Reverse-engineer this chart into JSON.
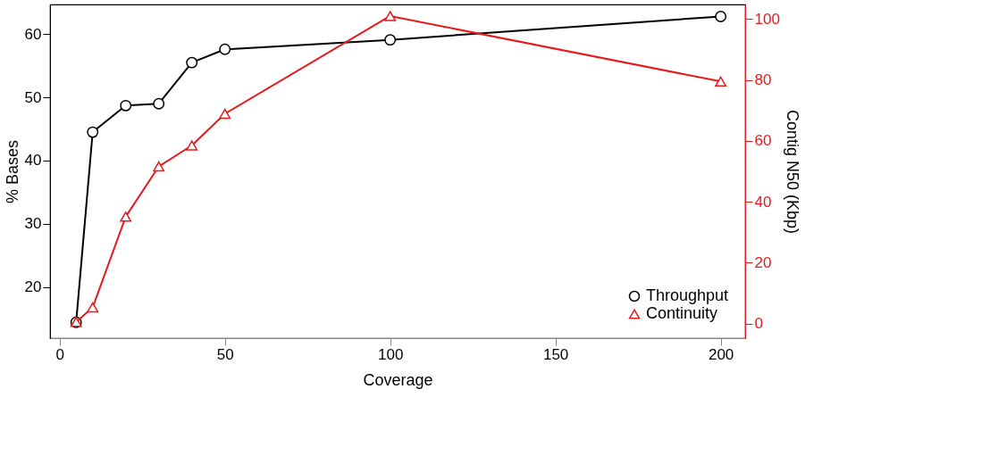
{
  "chart_data": {
    "type": "line",
    "xlabel": "Coverage",
    "ylabel": "% Bases",
    "y2label": "Contig N50 (Kbp)",
    "x": [
      5,
      10,
      20,
      30,
      40,
      50,
      100,
      200
    ],
    "series": [
      {
        "name": "Throughput",
        "color": "#000000",
        "marker": "circle",
        "values": [
          14.4,
          44.5,
          48.7,
          49.0,
          55.5,
          57.6,
          59.1,
          62.8
        ]
      },
      {
        "name": "Continuity",
        "color": "#e41a1c",
        "marker": "triangle",
        "axis": "y2",
        "values": [
          0.5,
          5.3,
          35.1,
          51.6,
          58.5,
          68.9,
          101,
          79.5
        ]
      }
    ],
    "xlim": [
      -2.9,
      207.4
    ],
    "xticks": [
      0,
      50,
      100,
      150,
      200
    ],
    "ylim": [
      11.9,
      64.7
    ],
    "yticks": [
      20,
      30,
      40,
      50,
      60
    ],
    "y2lim": [
      -4.8,
      104.8
    ],
    "y2ticks": [
      0,
      20,
      40,
      60,
      80,
      100
    ],
    "grid": false,
    "legend": "bottom right"
  }
}
